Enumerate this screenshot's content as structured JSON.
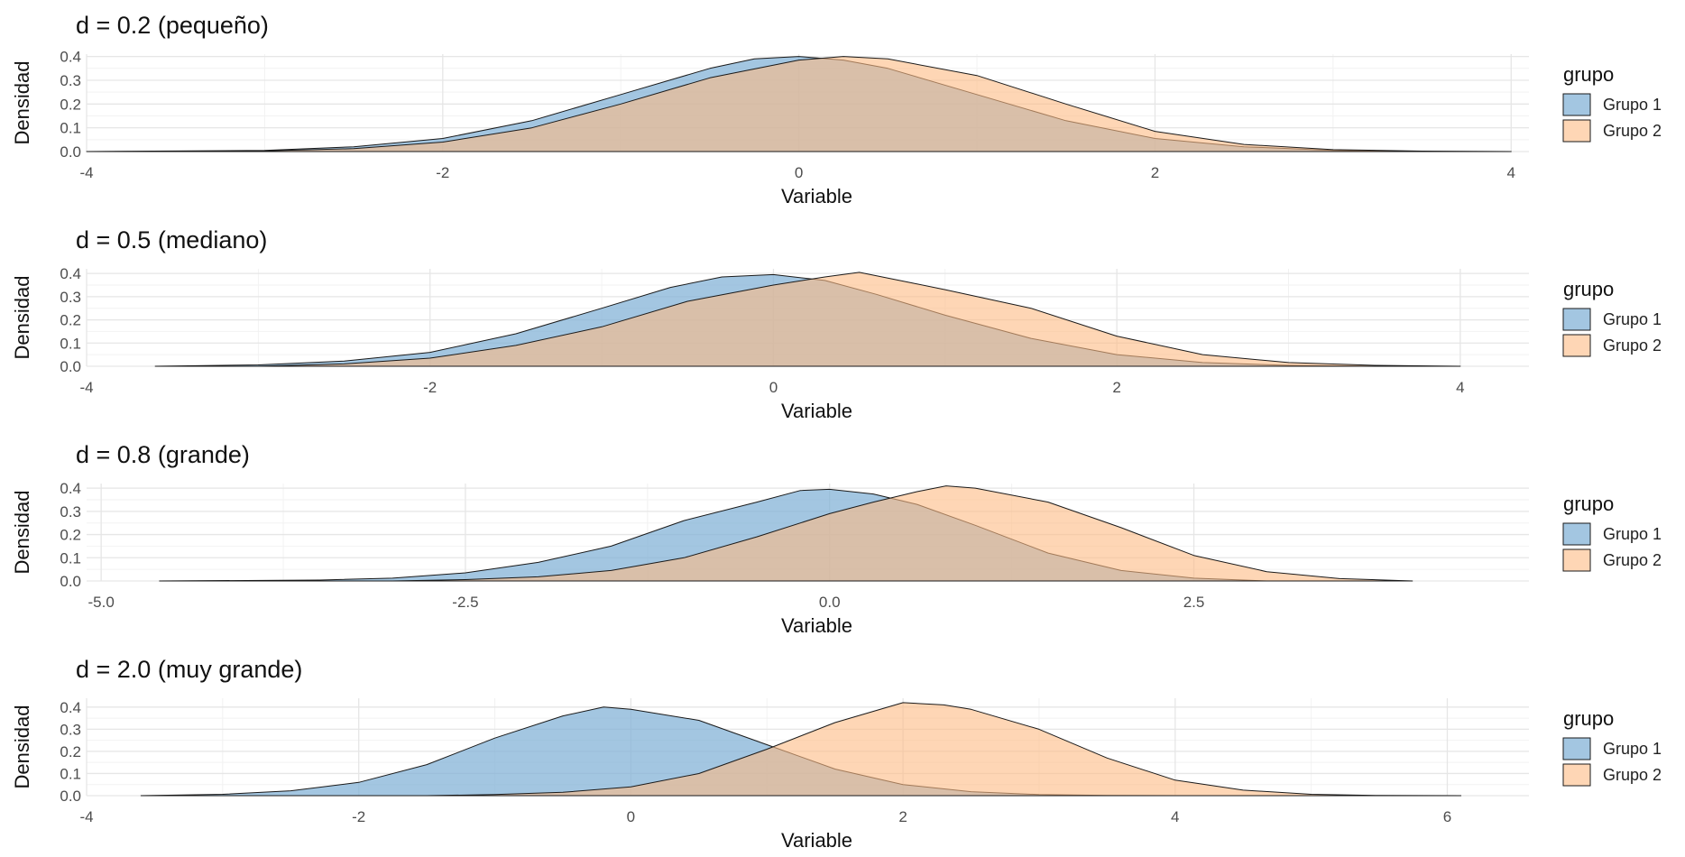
{
  "chart_data": [
    {
      "type": "area",
      "title": "d = 0.2 (pequeño)",
      "xlabel": "Variable",
      "ylabel": "Densidad",
      "xlim": [
        -4.0,
        4.0
      ],
      "x_range_shown": [
        -4.0,
        4.0
      ],
      "xticks": [
        -4,
        -2,
        0,
        2,
        4
      ],
      "xtick_labels": [
        "-4",
        "-2",
        "0",
        "2",
        "4"
      ],
      "yticks": [
        0.0,
        0.1,
        0.2,
        0.3,
        0.4
      ],
      "ytick_labels": [
        "0.0",
        "0.1",
        "0.2",
        "0.3",
        "0.4"
      ],
      "ylim": [
        0,
        0.41
      ],
      "grid": true,
      "legend": {
        "title": "grupo",
        "position": "right"
      },
      "series": [
        {
          "name": "Grupo 1",
          "color": "#7fb0d6",
          "x": [
            -4.0,
            -3.0,
            -2.5,
            -2.0,
            -1.5,
            -1.0,
            -0.5,
            -0.25,
            0.0,
            0.25,
            0.5,
            1.0,
            1.5,
            2.0,
            2.5,
            3.0,
            3.5
          ],
          "y": [
            0.0,
            0.005,
            0.02,
            0.055,
            0.13,
            0.24,
            0.35,
            0.39,
            0.4,
            0.385,
            0.35,
            0.24,
            0.13,
            0.055,
            0.02,
            0.005,
            0.0
          ]
        },
        {
          "name": "Grupo 2",
          "color": "#fdba84",
          "x": [
            -3.5,
            -3.0,
            -2.5,
            -2.0,
            -1.5,
            -1.0,
            -0.5,
            0.0,
            0.25,
            0.5,
            1.0,
            1.5,
            2.0,
            2.5,
            3.0,
            3.5,
            4.0
          ],
          "y": [
            0.0,
            0.003,
            0.012,
            0.04,
            0.1,
            0.2,
            0.31,
            0.385,
            0.4,
            0.39,
            0.32,
            0.2,
            0.085,
            0.03,
            0.008,
            0.002,
            0.0
          ]
        }
      ]
    },
    {
      "type": "area",
      "title": "d = 0.5 (mediano)",
      "xlabel": "Variable",
      "ylabel": "Densidad",
      "xlim": [
        -4.0,
        4.0
      ],
      "x_range_shown": [
        -4.0,
        4.0
      ],
      "xticks": [
        -4,
        -2,
        0,
        2,
        4
      ],
      "xtick_labels": [
        "-4",
        "-2",
        "0",
        "2",
        "4"
      ],
      "yticks": [
        0.0,
        0.1,
        0.2,
        0.3,
        0.4
      ],
      "ytick_labels": [
        "0.0",
        "0.1",
        "0.2",
        "0.3",
        "0.4"
      ],
      "ylim": [
        0,
        0.42
      ],
      "grid": true,
      "legend": {
        "title": "grupo",
        "position": "right"
      },
      "series": [
        {
          "name": "Grupo 1",
          "color": "#7fb0d6",
          "x": [
            -3.6,
            -3.0,
            -2.5,
            -2.0,
            -1.5,
            -1.0,
            -0.6,
            -0.3,
            0.0,
            0.3,
            0.6,
            1.0,
            1.5,
            2.0,
            2.5,
            3.0,
            3.5
          ],
          "y": [
            0.0,
            0.006,
            0.022,
            0.06,
            0.14,
            0.25,
            0.34,
            0.385,
            0.395,
            0.37,
            0.31,
            0.22,
            0.12,
            0.05,
            0.016,
            0.004,
            0.0
          ]
        },
        {
          "name": "Grupo 2",
          "color": "#fdba84",
          "x": [
            -3.0,
            -2.5,
            -2.0,
            -1.5,
            -1.0,
            -0.5,
            0.0,
            0.3,
            0.5,
            0.8,
            1.0,
            1.5,
            2.0,
            2.5,
            3.0,
            3.5,
            4.0
          ],
          "y": [
            0.0,
            0.01,
            0.035,
            0.09,
            0.17,
            0.28,
            0.35,
            0.385,
            0.405,
            0.36,
            0.33,
            0.25,
            0.13,
            0.05,
            0.016,
            0.004,
            0.0
          ]
        }
      ]
    },
    {
      "type": "area",
      "title": "d = 0.8 (grande)",
      "xlabel": "Variable",
      "ylabel": "Densidad",
      "xlim": [
        -5.0,
        5.0
      ],
      "x_range_shown": [
        -5.0,
        5.0
      ],
      "xticks": [
        -5.0,
        -2.5,
        0.0,
        2.5
      ],
      "xtick_labels": [
        "-5.0",
        "-2.5",
        "0.0",
        "2.5"
      ],
      "yticks": [
        0.0,
        0.1,
        0.2,
        0.3,
        0.4
      ],
      "ytick_labels": [
        "0.0",
        "0.1",
        "0.2",
        "0.3",
        "0.4"
      ],
      "ylim": [
        0,
        0.42
      ],
      "grid": true,
      "legend": {
        "title": "grupo",
        "position": "right"
      },
      "series": [
        {
          "name": "Grupo 1",
          "color": "#7fb0d6",
          "x": [
            -4.6,
            -3.5,
            -3.0,
            -2.5,
            -2.0,
            -1.5,
            -1.0,
            -0.5,
            -0.2,
            0.0,
            0.3,
            0.6,
            1.0,
            1.5,
            2.0,
            2.5,
            3.0
          ],
          "y": [
            0.0,
            0.004,
            0.012,
            0.035,
            0.08,
            0.15,
            0.26,
            0.34,
            0.39,
            0.395,
            0.375,
            0.33,
            0.24,
            0.12,
            0.045,
            0.012,
            0.0
          ]
        },
        {
          "name": "Grupo 2",
          "color": "#fdba84",
          "x": [
            -3.0,
            -2.5,
            -2.0,
            -1.5,
            -1.0,
            -0.5,
            0.0,
            0.3,
            0.6,
            0.8,
            1.0,
            1.5,
            2.0,
            2.5,
            3.0,
            3.5,
            4.0
          ],
          "y": [
            0.0,
            0.006,
            0.018,
            0.045,
            0.1,
            0.19,
            0.29,
            0.34,
            0.385,
            0.41,
            0.4,
            0.34,
            0.23,
            0.11,
            0.04,
            0.01,
            0.0
          ]
        }
      ]
    },
    {
      "type": "area",
      "title": "d = 2.0 (muy grande)",
      "xlabel": "Variable",
      "ylabel": "Densidad",
      "xlim": [
        -4.0,
        6.0
      ],
      "x_range_shown": [
        -4.0,
        6.0
      ],
      "xticks": [
        -4,
        -2,
        0,
        2,
        4,
        6
      ],
      "xtick_labels": [
        "-4",
        "-2",
        "0",
        "2",
        "4",
        "6"
      ],
      "yticks": [
        0.0,
        0.1,
        0.2,
        0.3,
        0.4
      ],
      "ytick_labels": [
        "0.0",
        "0.1",
        "0.2",
        "0.3",
        "0.4"
      ],
      "ylim": [
        0,
        0.44
      ],
      "grid": true,
      "legend": {
        "title": "grupo",
        "position": "right"
      },
      "series": [
        {
          "name": "Grupo 1",
          "color": "#7fb0d6",
          "x": [
            -3.6,
            -3.0,
            -2.5,
            -2.0,
            -1.5,
            -1.0,
            -0.5,
            -0.2,
            0.0,
            0.5,
            1.0,
            1.5,
            2.0,
            2.5,
            3.0,
            3.5,
            4.0
          ],
          "y": [
            0.0,
            0.006,
            0.022,
            0.06,
            0.14,
            0.26,
            0.36,
            0.4,
            0.39,
            0.34,
            0.23,
            0.12,
            0.05,
            0.018,
            0.005,
            0.001,
            0.0
          ]
        },
        {
          "name": "Grupo 2",
          "color": "#fdba84",
          "x": [
            -1.5,
            -1.0,
            -0.5,
            0.0,
            0.5,
            1.0,
            1.5,
            2.0,
            2.3,
            2.5,
            3.0,
            3.5,
            4.0,
            4.5,
            5.0,
            5.5,
            6.1
          ],
          "y": [
            0.0,
            0.005,
            0.015,
            0.04,
            0.1,
            0.21,
            0.33,
            0.42,
            0.41,
            0.39,
            0.3,
            0.17,
            0.07,
            0.025,
            0.006,
            0.001,
            0.0
          ]
        }
      ]
    }
  ]
}
